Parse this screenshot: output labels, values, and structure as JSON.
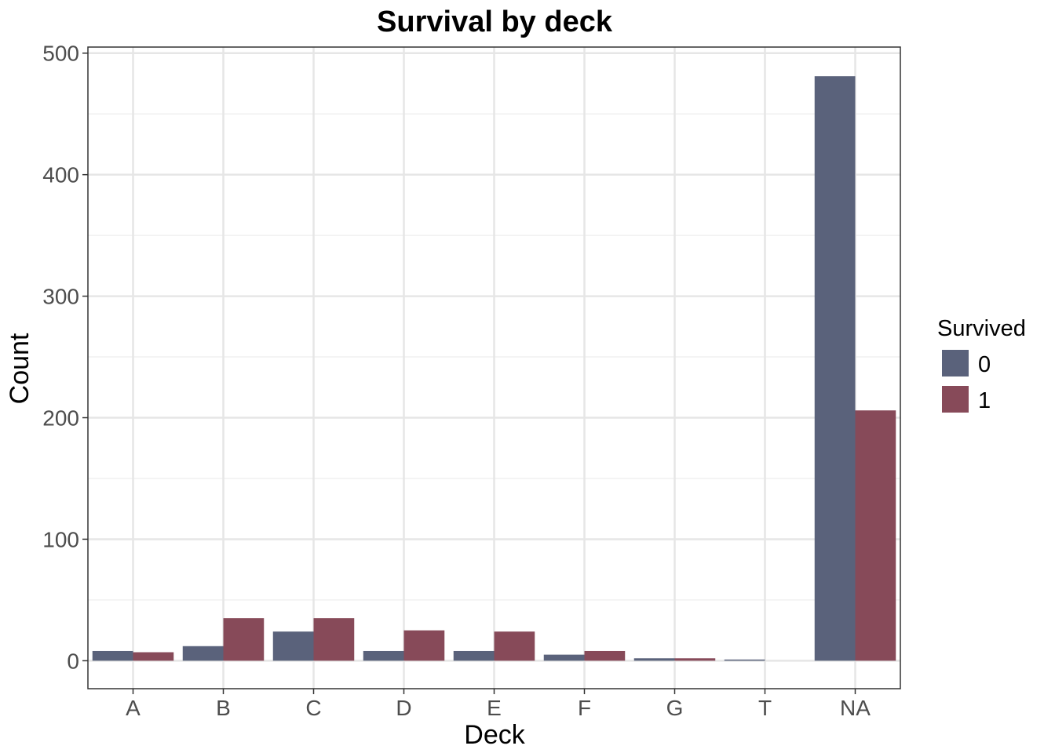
{
  "chart_data": {
    "type": "bar",
    "title": "Survival by deck",
    "xlabel": "Deck",
    "ylabel": "Count",
    "categories": [
      "A",
      "B",
      "C",
      "D",
      "E",
      "F",
      "G",
      "T",
      "NA"
    ],
    "series": [
      {
        "name": "0",
        "color": "#5a627b",
        "values": [
          8,
          12,
          24,
          8,
          8,
          5,
          2,
          1,
          481
        ]
      },
      {
        "name": "1",
        "color": "#874a59",
        "values": [
          7,
          35,
          35,
          25,
          24,
          8,
          2,
          0,
          206
        ]
      }
    ],
    "ylim": [
      -23,
      505
    ],
    "yticks": [
      0,
      100,
      200,
      300,
      400,
      500
    ],
    "legend": {
      "title": "Survived",
      "position": "right"
    },
    "grid": true
  }
}
